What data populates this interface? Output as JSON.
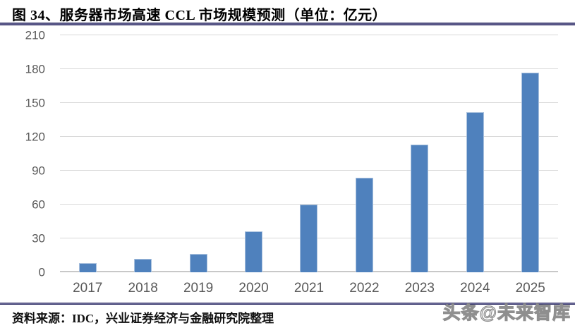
{
  "header": {
    "title": "图 34、服务器市场高速 CCL 市场规模预测（单位：亿元）"
  },
  "chart_data": {
    "type": "bar",
    "title": "图 34、服务器市场高速 CCL 市场规模预测（单位：亿元）",
    "unit": "亿元",
    "categories": [
      "2017",
      "2018",
      "2019",
      "2020",
      "2021",
      "2022",
      "2023",
      "2024",
      "2025"
    ],
    "values": [
      8,
      12,
      16,
      36,
      60,
      84,
      113,
      142,
      177
    ],
    "xlabel": "",
    "ylabel": "",
    "ylim": [
      0,
      210
    ],
    "yticks": [
      0,
      30,
      60,
      90,
      120,
      150,
      180,
      210
    ],
    "grid": true,
    "legend": false,
    "bar_color": "#4F81BD",
    "gridline_color": "#D9D9D9",
    "axis_line_color": "#C8C8C8",
    "tick_label_color": "#595959"
  },
  "footer": {
    "source": "资料来源：IDC，兴业证券经济与金融研究院整理",
    "watermark": "头条@未来智库"
  },
  "colors": {
    "rule": "#3B3A6E",
    "background": "#FFFFFF"
  }
}
